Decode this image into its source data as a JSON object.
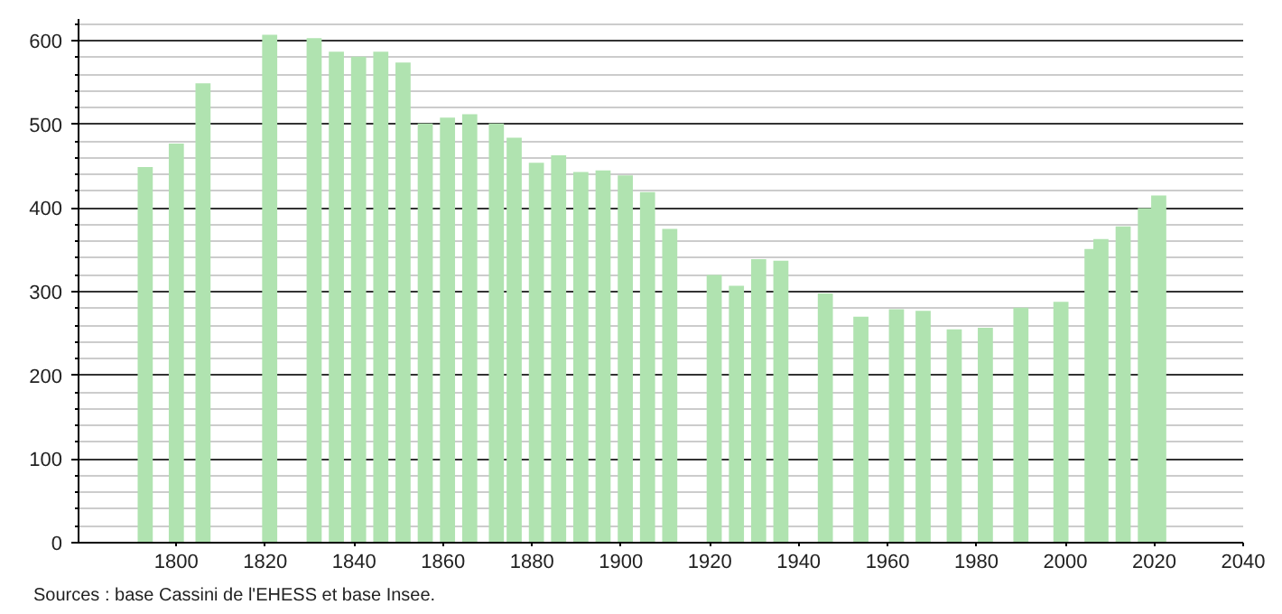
{
  "chart_data": {
    "type": "bar",
    "x": [
      1793,
      1800,
      1806,
      1821,
      1831,
      1836,
      1841,
      1846,
      1851,
      1856,
      1861,
      1866,
      1872,
      1876,
      1881,
      1886,
      1891,
      1896,
      1901,
      1906,
      1911,
      1921,
      1926,
      1931,
      1936,
      1946,
      1954,
      1962,
      1968,
      1975,
      1982,
      1990,
      1999,
      2006,
      2008,
      2013,
      2018,
      2021
    ],
    "series": [
      {
        "color": "#b0e3b0",
        "values": [
          449,
          477,
          549,
          607,
          603,
          587,
          581,
          587,
          574,
          501,
          508,
          512,
          501,
          484,
          454,
          463,
          443,
          445,
          439,
          419,
          375,
          320,
          307,
          339,
          337,
          298,
          270,
          279,
          277,
          255,
          257,
          281,
          288,
          351,
          363,
          378,
          400,
          415
        ]
      }
    ],
    "xlim": [
      1778,
      2040
    ],
    "xticks": [
      1800,
      1820,
      1840,
      1860,
      1880,
      1900,
      1920,
      1940,
      1960,
      1980,
      2000,
      2020,
      2040
    ],
    "ylim": [
      0,
      626
    ],
    "yticks": [
      0,
      {
        "value": 20,
        "label": null
      },
      {
        "value": 40,
        "label": null
      },
      {
        "value": 60,
        "label": null
      },
      {
        "value": 80,
        "label": null
      },
      100,
      {
        "value": 120,
        "label": null
      },
      {
        "value": 140,
        "label": null
      },
      {
        "value": 160,
        "label": null
      },
      {
        "value": 180,
        "label": null
      },
      200,
      {
        "value": 220,
        "label": null
      },
      {
        "value": 240,
        "label": null
      },
      {
        "value": 260,
        "label": null
      },
      {
        "value": 280,
        "label": null
      },
      300,
      {
        "value": 320,
        "label": null
      },
      {
        "value": 340,
        "label": null
      },
      {
        "value": 360,
        "label": null
      },
      {
        "value": 380,
        "label": null
      },
      400,
      {
        "value": 420,
        "label": null
      },
      {
        "value": 440,
        "label": null
      },
      {
        "value": 460,
        "label": null
      },
      {
        "value": 480,
        "label": null
      },
      500,
      {
        "value": 520,
        "label": null
      },
      {
        "value": 540,
        "label": null
      },
      {
        "value": 560,
        "label": null
      },
      {
        "value": 580,
        "label": null
      },
      600,
      {
        "value": 620,
        "label": null
      }
    ],
    "grid": "y",
    "annotations": [
      "Sources : base Cassini de l'EHESS et base Insee."
    ]
  }
}
